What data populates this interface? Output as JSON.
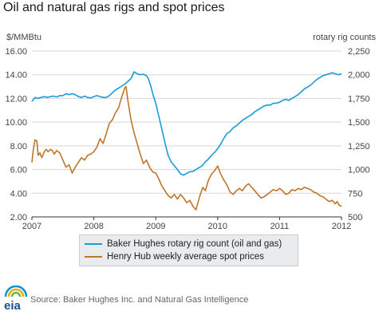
{
  "title": "Oil and natural gas rigs and spot prices",
  "source": "Source: Baker Hughes Inc. and Natural Gas Intelligence",
  "logo": {
    "text": "eia",
    "colors": [
      "#0096d6",
      "#f2a900",
      "#5cb85c"
    ]
  },
  "chart_data": {
    "type": "line",
    "title": "Oil and natural gas rigs and spot prices",
    "ylabel_left": "$/MMBtu",
    "ylabel_right": "rotary rig counts",
    "x_ticks": [
      "2007",
      "2008",
      "2009",
      "2010",
      "2011",
      "2012"
    ],
    "xlim": [
      2007,
      2012
    ],
    "y_left_ticks": [
      "2.00",
      "4.00",
      "6.00",
      "8.00",
      "10.00",
      "12.00",
      "14.00",
      "16.00"
    ],
    "ylim_left": [
      2,
      16
    ],
    "y_right_ticks": [
      "500",
      "750",
      "1,000",
      "1,250",
      "1,500",
      "1,750",
      "2,000",
      "2,250"
    ],
    "ylim_right": [
      500,
      2250
    ],
    "grid": "horizontal",
    "legend_position": "bottom",
    "series": [
      {
        "name": "Baker Hughes rotary rig count (oil and gas)",
        "axis": "right",
        "color": "#1a9bd7",
        "points": [
          [
            2007.0,
            1720
          ],
          [
            2007.05,
            1760
          ],
          [
            2007.1,
            1750
          ],
          [
            2007.15,
            1760
          ],
          [
            2007.2,
            1770
          ],
          [
            2007.25,
            1760
          ],
          [
            2007.3,
            1770
          ],
          [
            2007.35,
            1775
          ],
          [
            2007.4,
            1765
          ],
          [
            2007.45,
            1780
          ],
          [
            2007.5,
            1780
          ],
          [
            2007.55,
            1800
          ],
          [
            2007.6,
            1790
          ],
          [
            2007.65,
            1800
          ],
          [
            2007.7,
            1790
          ],
          [
            2007.75,
            1770
          ],
          [
            2007.8,
            1760
          ],
          [
            2007.85,
            1775
          ],
          [
            2007.9,
            1760
          ],
          [
            2007.95,
            1755
          ],
          [
            2008.0,
            1770
          ],
          [
            2008.05,
            1780
          ],
          [
            2008.1,
            1770
          ],
          [
            2008.15,
            1760
          ],
          [
            2008.2,
            1760
          ],
          [
            2008.25,
            1780
          ],
          [
            2008.3,
            1810
          ],
          [
            2008.35,
            1840
          ],
          [
            2008.4,
            1860
          ],
          [
            2008.45,
            1880
          ],
          [
            2008.5,
            1900
          ],
          [
            2008.55,
            1930
          ],
          [
            2008.6,
            1960
          ],
          [
            2008.65,
            2030
          ],
          [
            2008.7,
            2010
          ],
          [
            2008.75,
            2000
          ],
          [
            2008.8,
            2005
          ],
          [
            2008.85,
            1990
          ],
          [
            2008.88,
            1960
          ],
          [
            2008.92,
            1880
          ],
          [
            2008.96,
            1780
          ],
          [
            2009.0,
            1700
          ],
          [
            2009.05,
            1560
          ],
          [
            2009.1,
            1420
          ],
          [
            2009.15,
            1280
          ],
          [
            2009.2,
            1150
          ],
          [
            2009.25,
            1080
          ],
          [
            2009.3,
            1040
          ],
          [
            2009.35,
            1000
          ],
          [
            2009.4,
            955
          ],
          [
            2009.45,
            940
          ],
          [
            2009.5,
            960
          ],
          [
            2009.55,
            975
          ],
          [
            2009.6,
            980
          ],
          [
            2009.65,
            1000
          ],
          [
            2009.7,
            1020
          ],
          [
            2009.75,
            1040
          ],
          [
            2009.8,
            1080
          ],
          [
            2009.85,
            1110
          ],
          [
            2009.9,
            1150
          ],
          [
            2009.95,
            1180
          ],
          [
            2010.0,
            1220
          ],
          [
            2010.05,
            1270
          ],
          [
            2010.1,
            1330
          ],
          [
            2010.15,
            1380
          ],
          [
            2010.2,
            1400
          ],
          [
            2010.25,
            1440
          ],
          [
            2010.3,
            1460
          ],
          [
            2010.35,
            1490
          ],
          [
            2010.4,
            1520
          ],
          [
            2010.45,
            1540
          ],
          [
            2010.5,
            1560
          ],
          [
            2010.55,
            1580
          ],
          [
            2010.6,
            1610
          ],
          [
            2010.65,
            1630
          ],
          [
            2010.7,
            1650
          ],
          [
            2010.75,
            1670
          ],
          [
            2010.8,
            1680
          ],
          [
            2010.85,
            1680
          ],
          [
            2010.9,
            1700
          ],
          [
            2010.95,
            1700
          ],
          [
            2011.0,
            1710
          ],
          [
            2011.05,
            1730
          ],
          [
            2011.1,
            1740
          ],
          [
            2011.15,
            1730
          ],
          [
            2011.2,
            1750
          ],
          [
            2011.25,
            1770
          ],
          [
            2011.3,
            1790
          ],
          [
            2011.35,
            1820
          ],
          [
            2011.4,
            1850
          ],
          [
            2011.45,
            1870
          ],
          [
            2011.5,
            1890
          ],
          [
            2011.55,
            1920
          ],
          [
            2011.6,
            1950
          ],
          [
            2011.65,
            1970
          ],
          [
            2011.7,
            1990
          ],
          [
            2011.75,
            2000
          ],
          [
            2011.8,
            2010
          ],
          [
            2011.85,
            2020
          ],
          [
            2011.9,
            2010
          ],
          [
            2011.95,
            2000
          ],
          [
            2012.0,
            2010
          ]
        ]
      },
      {
        "name": "Henry Hub weekly average spot prices",
        "axis": "left",
        "color": "#c0762a",
        "points": [
          [
            2007.0,
            6.6
          ],
          [
            2007.02,
            7.6
          ],
          [
            2007.05,
            8.5
          ],
          [
            2007.08,
            8.4
          ],
          [
            2007.1,
            7.2
          ],
          [
            2007.13,
            7.4
          ],
          [
            2007.16,
            7.0
          ],
          [
            2007.2,
            7.5
          ],
          [
            2007.23,
            7.7
          ],
          [
            2007.26,
            7.5
          ],
          [
            2007.3,
            7.7
          ],
          [
            2007.33,
            7.6
          ],
          [
            2007.36,
            7.3
          ],
          [
            2007.4,
            7.6
          ],
          [
            2007.45,
            7.4
          ],
          [
            2007.5,
            6.8
          ],
          [
            2007.55,
            6.2
          ],
          [
            2007.6,
            6.4
          ],
          [
            2007.65,
            5.7
          ],
          [
            2007.7,
            6.2
          ],
          [
            2007.75,
            6.6
          ],
          [
            2007.8,
            7.0
          ],
          [
            2007.85,
            6.8
          ],
          [
            2007.9,
            7.2
          ],
          [
            2007.95,
            7.3
          ],
          [
            2008.0,
            7.5
          ],
          [
            2008.05,
            7.9
          ],
          [
            2008.1,
            8.6
          ],
          [
            2008.15,
            8.2
          ],
          [
            2008.2,
            9.0
          ],
          [
            2008.25,
            9.9
          ],
          [
            2008.3,
            10.2
          ],
          [
            2008.35,
            10.8
          ],
          [
            2008.4,
            11.2
          ],
          [
            2008.45,
            12.1
          ],
          [
            2008.5,
            12.9
          ],
          [
            2008.52,
            13.0
          ],
          [
            2008.55,
            11.8
          ],
          [
            2008.6,
            10.2
          ],
          [
            2008.65,
            9.1
          ],
          [
            2008.7,
            8.2
          ],
          [
            2008.75,
            7.3
          ],
          [
            2008.8,
            6.5
          ],
          [
            2008.85,
            6.8
          ],
          [
            2008.9,
            6.2
          ],
          [
            2008.95,
            5.8
          ],
          [
            2009.0,
            5.7
          ],
          [
            2009.05,
            5.2
          ],
          [
            2009.1,
            4.6
          ],
          [
            2009.15,
            4.2
          ],
          [
            2009.2,
            3.8
          ],
          [
            2009.25,
            3.6
          ],
          [
            2009.3,
            3.9
          ],
          [
            2009.35,
            3.5
          ],
          [
            2009.4,
            3.9
          ],
          [
            2009.45,
            3.6
          ],
          [
            2009.5,
            3.2
          ],
          [
            2009.55,
            3.4
          ],
          [
            2009.6,
            2.9
          ],
          [
            2009.65,
            2.6
          ],
          [
            2009.68,
            3.2
          ],
          [
            2009.72,
            3.9
          ],
          [
            2009.76,
            4.5
          ],
          [
            2009.8,
            4.2
          ],
          [
            2009.85,
            5.1
          ],
          [
            2009.9,
            5.6
          ],
          [
            2009.95,
            5.9
          ],
          [
            2010.0,
            6.3
          ],
          [
            2010.05,
            5.6
          ],
          [
            2010.1,
            5.1
          ],
          [
            2010.15,
            4.7
          ],
          [
            2010.2,
            4.1
          ],
          [
            2010.25,
            3.9
          ],
          [
            2010.3,
            4.2
          ],
          [
            2010.35,
            4.4
          ],
          [
            2010.4,
            4.2
          ],
          [
            2010.45,
            4.6
          ],
          [
            2010.5,
            4.8
          ],
          [
            2010.55,
            4.5
          ],
          [
            2010.6,
            4.2
          ],
          [
            2010.65,
            3.9
          ],
          [
            2010.7,
            3.6
          ],
          [
            2010.75,
            3.7
          ],
          [
            2010.8,
            3.9
          ],
          [
            2010.85,
            4.1
          ],
          [
            2010.9,
            4.3
          ],
          [
            2010.95,
            4.2
          ],
          [
            2011.0,
            4.4
          ],
          [
            2011.05,
            4.2
          ],
          [
            2011.1,
            3.9
          ],
          [
            2011.15,
            4.0
          ],
          [
            2011.2,
            4.3
          ],
          [
            2011.25,
            4.2
          ],
          [
            2011.3,
            4.4
          ],
          [
            2011.35,
            4.3
          ],
          [
            2011.4,
            4.5
          ],
          [
            2011.45,
            4.4
          ],
          [
            2011.5,
            4.3
          ],
          [
            2011.55,
            4.1
          ],
          [
            2011.6,
            4.0
          ],
          [
            2011.65,
            3.8
          ],
          [
            2011.7,
            3.7
          ],
          [
            2011.75,
            3.5
          ],
          [
            2011.8,
            3.3
          ],
          [
            2011.85,
            3.4
          ],
          [
            2011.9,
            3.1
          ],
          [
            2011.93,
            3.3
          ],
          [
            2011.96,
            3.0
          ],
          [
            2012.0,
            2.9
          ]
        ]
      }
    ]
  }
}
